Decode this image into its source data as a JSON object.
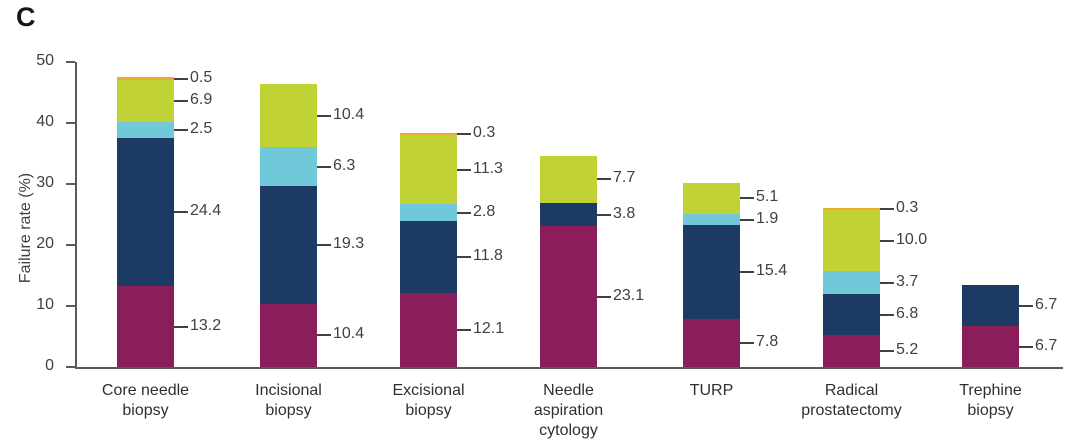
{
  "chart_data": {
    "type": "bar",
    "stacked": true,
    "panel_label": "C",
    "title": "",
    "xlabel": "",
    "ylabel": "Failure rate (%)",
    "ylim": [
      0,
      50
    ],
    "yticks": [
      "0",
      "10",
      "20",
      "30",
      "40",
      "50"
    ],
    "grid": false,
    "legend": "none",
    "categories": [
      "Core needle\nbiopsy",
      "Incisional\nbiopsy",
      "Excisional\nbiopsy",
      "Needle\naspiration\ncytology",
      "TURP",
      "Radical\nprostatectomy",
      "Trephine\nbiopsy"
    ],
    "series": [
      {
        "name": "maroon",
        "color": "#8C1D5B",
        "values": [
          13.2,
          10.4,
          12.1,
          23.1,
          7.8,
          5.2,
          6.7
        ],
        "labels": [
          "13.2",
          "10.4",
          "12.1",
          "23.1",
          "7.8",
          "5.2",
          "6.7"
        ]
      },
      {
        "name": "navy",
        "color": "#1C3A63",
        "values": [
          24.4,
          19.3,
          11.8,
          3.8,
          15.4,
          6.8,
          6.7
        ],
        "labels": [
          "24.4",
          "19.3",
          "11.8",
          "3.8",
          "15.4",
          "6.8",
          "6.7"
        ]
      },
      {
        "name": "light-blue",
        "color": "#6FC9D8",
        "values": [
          2.5,
          6.3,
          2.8,
          null,
          1.9,
          3.7,
          null
        ],
        "labels": [
          "2.5",
          "6.3",
          "2.8",
          null,
          "1.9",
          "3.7",
          null
        ]
      },
      {
        "name": "green",
        "color": "#C0D235",
        "values": [
          6.9,
          10.4,
          11.3,
          7.7,
          5.1,
          10.0,
          null
        ],
        "labels": [
          "6.9",
          "10.4",
          "11.3",
          "7.7",
          "5.1",
          "10.0",
          null
        ]
      },
      {
        "name": "orange",
        "color": "#EFA92E",
        "values": [
          0.5,
          null,
          0.3,
          null,
          null,
          0.3,
          null
        ],
        "labels": [
          "0.5",
          null,
          "0.3",
          null,
          null,
          "0.3",
          null
        ]
      }
    ],
    "colors": {
      "axis": "#58595B",
      "leader_line": "#414042",
      "tick_text": "#414042",
      "category_text": "#2F2F31"
    }
  }
}
